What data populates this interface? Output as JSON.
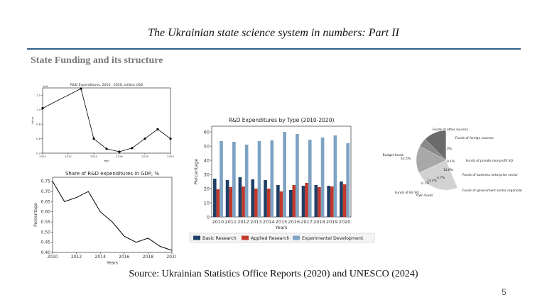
{
  "slide": {
    "title": "The Ukrainian state science system in numbers: Part II",
    "section": "State Funding and its structure",
    "source": "Source: Ukrainian Statistics Office Reports (2020) and UNESCO (2024)",
    "page_number": "5"
  },
  "chart_data": [
    {
      "type": "line",
      "title": "R&D Expenditures, 2010 - 2020, million USD",
      "xlabel": "Year",
      "ylabel": "Value",
      "y_offset_label": "1e9",
      "x": [
        2010,
        2013,
        2014,
        2015,
        2016,
        2017,
        2018,
        2019,
        2020
      ],
      "values": [
        1.02,
        1.29,
        0.6,
        0.46,
        0.42,
        0.47,
        0.6,
        0.73,
        0.6
      ],
      "x_ticks": [
        "2010",
        "2012",
        "2014",
        "2016",
        "2018",
        "2020"
      ],
      "y_ticks": [
        "0.4",
        "0.6",
        "0.8",
        "1.0",
        "1.2"
      ],
      "xlim": [
        2010,
        2020
      ],
      "ylim": [
        0.4,
        1.3
      ],
      "color": "#000000"
    },
    {
      "type": "line",
      "title": "Share of R&D expenditures in GDP, %",
      "xlabel": "Years",
      "ylabel": "Percentage",
      "x": [
        2010,
        2011,
        2012,
        2013,
        2014,
        2015,
        2016,
        2017,
        2018,
        2019,
        2020
      ],
      "values": [
        0.75,
        0.65,
        0.67,
        0.7,
        0.6,
        0.55,
        0.48,
        0.45,
        0.47,
        0.43,
        0.41
      ],
      "x_ticks": [
        "2010",
        "2012",
        "2014",
        "2016",
        "2018",
        "2020"
      ],
      "y_ticks": [
        "0.40",
        "0.45",
        "0.50",
        "0.55",
        "0.60",
        "0.65",
        "0.70",
        "0.75"
      ],
      "xlim": [
        2010,
        2020
      ],
      "ylim": [
        0.4,
        0.77
      ],
      "color": "#000000"
    },
    {
      "type": "bar",
      "title": "R&D Expenditures by Type (2010-2020)",
      "xlabel": "Years",
      "ylabel": "Percentage",
      "categories": [
        "2010",
        "2011",
        "2012",
        "2013",
        "2014",
        "2015",
        "2016",
        "2017",
        "2018",
        "2019",
        "2020"
      ],
      "series": [
        {
          "name": "Basic Research",
          "color": "#1f3f66",
          "values": [
            27,
            26,
            28,
            26.5,
            26,
            22.5,
            19,
            22,
            22.5,
            22,
            25
          ]
        },
        {
          "name": "Applied Research",
          "color": "#c0392b",
          "values": [
            19.5,
            21,
            21.5,
            20,
            20,
            18,
            22.5,
            24,
            21,
            21.5,
            23
          ]
        },
        {
          "name": "Experimental Development",
          "color": "#7da2c3",
          "values": [
            53.5,
            53,
            51,
            53.5,
            54,
            60,
            58.5,
            54.5,
            56,
            57.5,
            52
          ]
        }
      ],
      "y_ticks": [
        "0",
        "10",
        "20",
        "30",
        "40",
        "50",
        "60"
      ],
      "ylim": [
        0,
        64
      ],
      "legend": "bottom"
    },
    {
      "type": "pie",
      "slices": [
        {
          "label": "Budget funds",
          "value": 43.5,
          "pct": "43.5%",
          "color": "#ffffff"
        },
        {
          "label": "Funds of other sources",
          "value": 0.4,
          "pct": "0.4%",
          "color": "#e6e6e6"
        },
        {
          "label": "Funds of foreign sources",
          "value": 24.0,
          "pct": "24.0%",
          "color": "#d2d2d2"
        },
        {
          "label": "Funds of private non-profit SO",
          "value": 0.1,
          "pct": "0.1%",
          "color": "#bdbdbd"
        },
        {
          "label": "Funds of business enterprise sector",
          "value": 14.8,
          "pct": "14.8%",
          "color": "#a8a8a8"
        },
        {
          "label": "Funds of government sector organizations",
          "value": 4.7,
          "pct": "4.7%",
          "color": "#8a8a8a"
        },
        {
          "label": "Own funds",
          "value": 12.4,
          "pct": "12.4%",
          "color": "#6b6b6b"
        },
        {
          "label": "Funds of HE SO",
          "value": 0.1,
          "pct": "0.1%",
          "color": "#4a4a4a"
        }
      ]
    }
  ]
}
